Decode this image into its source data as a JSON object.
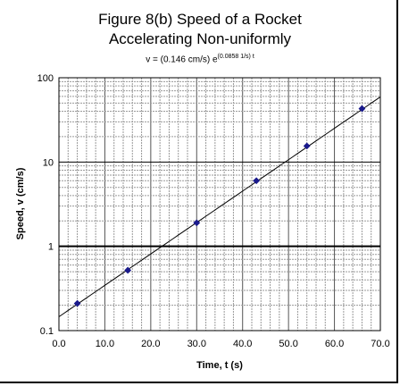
{
  "chart_data": {
    "type": "scatter",
    "title_line1": "Figure 8(b) Speed of a Rocket",
    "title_line2": "Accelerating Non-uniformly",
    "equation": {
      "prefix": "v = (0.146 cm/s) e",
      "exponent": "(0.0858 1/s) t"
    },
    "xlabel": "Time, t (s)",
    "ylabel": "Speed, v (cm/s)",
    "xlim": [
      0,
      70
    ],
    "ylim": [
      0.1,
      100
    ],
    "y_scale": "log",
    "x_tick_labels": [
      "0.0",
      "10.0",
      "20.0",
      "30.0",
      "40.0",
      "50.0",
      "60.0",
      "70.0"
    ],
    "y_tick_labels": [
      "0.1",
      "1",
      "10",
      "100"
    ],
    "grid": true,
    "marker_color": "#1a1a8c",
    "series": [
      {
        "x": [
          4,
          15,
          30,
          43,
          54,
          66
        ],
        "y": [
          0.21,
          0.52,
          1.9,
          6.0,
          15.5,
          43
        ]
      }
    ],
    "fit_line": {
      "a": 0.146,
      "b": 0.0858
    }
  }
}
